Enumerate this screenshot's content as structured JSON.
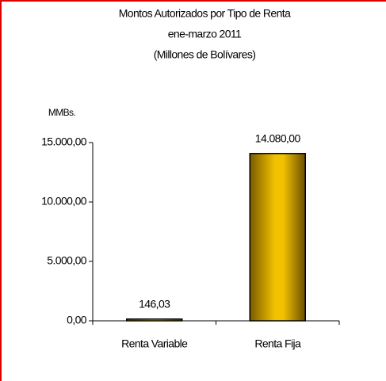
{
  "chart_data": {
    "type": "bar",
    "title": "Montos Autorizados por Tipo de Renta",
    "subtitle": "ene-marzo 2011",
    "subtitle2": "(Millones de Bolívares)",
    "y_label": "MMBs.",
    "categories": [
      "Renta Variable",
      "Renta Fija"
    ],
    "values": [
      146.03,
      14080
    ],
    "value_labels": [
      "146,03",
      "14.080,00"
    ],
    "color": "#f2c200",
    "ylim": [
      0,
      15000
    ],
    "yticks": [
      {
        "value": 0,
        "label": "0,00"
      },
      {
        "value": 5000,
        "label": "5.000,00"
      },
      {
        "value": 10000,
        "label": "10.000,00"
      },
      {
        "value": 15000,
        "label": "15.000,00"
      }
    ],
    "grid": false
  }
}
